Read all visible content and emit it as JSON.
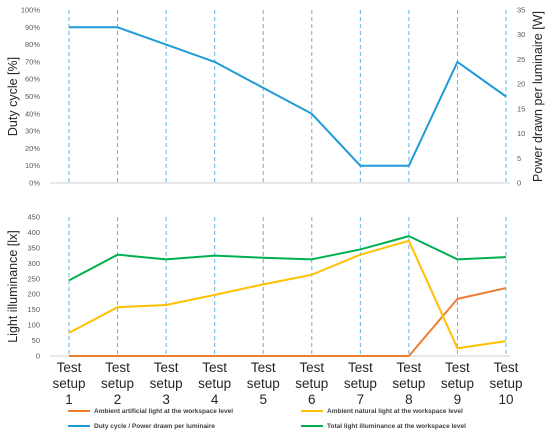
{
  "chart_data": [
    {
      "type": "line",
      "categories": [
        [
          "Test",
          "setup",
          "1"
        ],
        [
          "Test",
          "setup",
          "2"
        ],
        [
          "Test",
          "setup",
          "3"
        ],
        [
          "Test",
          "setup",
          "4"
        ],
        [
          "Test",
          "setup",
          "5"
        ],
        [
          "Test",
          "setup",
          "6"
        ],
        [
          "Test",
          "setup",
          "7"
        ],
        [
          "Test",
          "setup",
          "8"
        ],
        [
          "Test",
          "setup",
          "9"
        ],
        [
          "Test",
          "setup",
          "10"
        ]
      ],
      "ylabel": "Duty cycle [%]",
      "y2label": "Power drawn per luminaire [W]",
      "ylim": [
        0,
        100
      ],
      "y2lim": [
        0,
        35
      ],
      "yticks": [
        "0%",
        "10%",
        "20%",
        "30%",
        "40%",
        "50%",
        "60%",
        "70%",
        "80%",
        "90%",
        "100%"
      ],
      "y2ticks": [
        "0",
        "5",
        "10",
        "15",
        "20",
        "25",
        "30",
        "35"
      ],
      "grid": "vertical dashed",
      "series": [
        {
          "name": "Duty cycle / Power drawn per luminaire",
          "color": "#1f9bd7",
          "values": [
            90,
            90,
            80,
            70,
            55,
            40,
            10,
            10,
            70,
            50
          ]
        }
      ]
    },
    {
      "type": "line",
      "categories": [
        [
          "Test",
          "setup",
          "1"
        ],
        [
          "Test",
          "setup",
          "2"
        ],
        [
          "Test",
          "setup",
          "3"
        ],
        [
          "Test",
          "setup",
          "4"
        ],
        [
          "Test",
          "setup",
          "5"
        ],
        [
          "Test",
          "setup",
          "6"
        ],
        [
          "Test",
          "setup",
          "7"
        ],
        [
          "Test",
          "setup",
          "8"
        ],
        [
          "Test",
          "setup",
          "9"
        ],
        [
          "Test",
          "setup",
          "10"
        ]
      ],
      "ylabel": "Light illuminance [lx]",
      "ylim": [
        0,
        450
      ],
      "yticks": [
        "0",
        "50",
        "100",
        "150",
        "200",
        "250",
        "300",
        "350",
        "400",
        "450"
      ],
      "grid": "vertical dashed",
      "legend_position": "bottom",
      "series": [
        {
          "name": "Ambient artificial light at the workspace level",
          "color": "#ed7d31",
          "values": [
            0,
            0,
            0,
            0,
            0,
            0,
            0,
            0,
            185,
            220
          ]
        },
        {
          "name": "Ambient natural light at the workspace level",
          "color": "#ffc000",
          "values": [
            75,
            158,
            165,
            198,
            232,
            263,
            328,
            373,
            25,
            48
          ]
        },
        {
          "name": "Total light illuminance at the workspace level",
          "color": "#00b050",
          "values": [
            245,
            328,
            313,
            325,
            318,
            313,
            345,
            388,
            313,
            320
          ]
        }
      ]
    }
  ],
  "legend": [
    {
      "label": "Ambient artificial light at the workspace level",
      "color": "#ed7d31"
    },
    {
      "label": "Ambient natural light at the workspace level",
      "color": "#ffc000"
    },
    {
      "label": "Duty cycle / Power drawn per luminaire",
      "color": "#1f9bd7"
    },
    {
      "label": "Total light illuminance at the workspace level",
      "color": "#00b050"
    }
  ]
}
